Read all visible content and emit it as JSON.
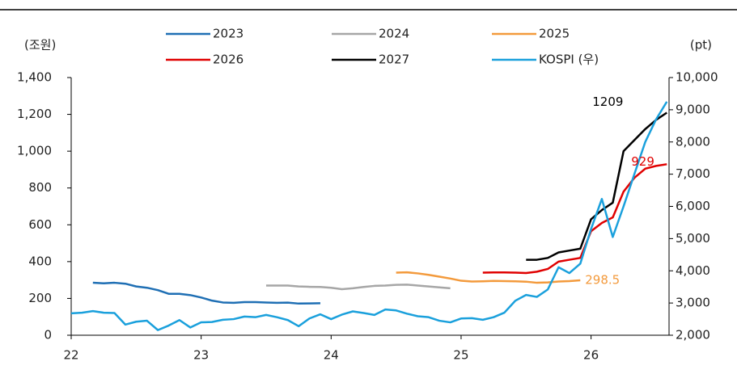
{
  "chart_data": {
    "type": "line",
    "y_unit_label": "(조원)",
    "y2_unit_label": "(pt)",
    "xlim": [
      22,
      26.6
    ],
    "xticks": [
      22,
      23,
      24,
      25,
      26
    ],
    "ylim": [
      0,
      1400
    ],
    "yticks": [
      0,
      200,
      400,
      600,
      800,
      {
        "value": 1000,
        "label": "1,000"
      },
      {
        "value": 1200,
        "label": "1,200"
      },
      {
        "value": 1400,
        "label": "1,400"
      }
    ],
    "y2lim": [
      2000,
      10000
    ],
    "y2ticks": [
      {
        "value": 2000,
        "label": "2,000"
      },
      {
        "value": 3000,
        "label": "3,000"
      },
      {
        "value": 4000,
        "label": "4,000"
      },
      {
        "value": 5000,
        "label": "5,000"
      },
      {
        "value": 6000,
        "label": "6,000"
      },
      {
        "value": 7000,
        "label": "7,000"
      },
      {
        "value": 8000,
        "label": "8,000"
      },
      {
        "value": 9000,
        "label": "9,000"
      },
      {
        "value": 10000,
        "label": "10,000"
      }
    ],
    "series": [
      {
        "name": "2023",
        "color": "#1f6fb4",
        "x": [
          22.167,
          22.25,
          22.333,
          22.417,
          22.5,
          22.583,
          22.667,
          22.75,
          22.833,
          22.917,
          23,
          23.083,
          23.167,
          23.25,
          23.333,
          23.417,
          23.5,
          23.583,
          23.667,
          23.75,
          23.833,
          23.917
        ],
        "values": [
          285,
          282,
          285,
          280,
          265,
          258,
          245,
          225,
          225,
          218,
          205,
          188,
          178,
          176,
          180,
          180,
          178,
          176,
          177,
          172,
          173,
          174
        ]
      },
      {
        "name": "2024",
        "color": "#a6a6a6",
        "x": [
          23.5,
          23.583,
          23.667,
          23.75,
          23.833,
          23.917,
          24,
          24.083,
          24.167,
          24.25,
          24.333,
          24.417,
          24.5,
          24.583,
          24.667,
          24.75,
          24.833,
          24.917
        ],
        "values": [
          270,
          270,
          270,
          265,
          263,
          262,
          258,
          250,
          255,
          262,
          268,
          270,
          274,
          275,
          270,
          265,
          260,
          255
        ]
      },
      {
        "name": "2025",
        "color": "#f39a3c",
        "x": [
          24.5,
          24.583,
          24.667,
          24.75,
          24.833,
          24.917,
          25,
          25.083,
          25.167,
          25.25,
          25.333,
          25.417,
          25.5,
          25.583,
          25.667,
          25.75,
          25.833,
          25.917
        ],
        "values": [
          340,
          342,
          336,
          328,
          318,
          308,
          296,
          292,
          293,
          295,
          294,
          293,
          291,
          285,
          287,
          292,
          294,
          298.5
        ]
      },
      {
        "name": "2026",
        "color": "#e00000",
        "x": [
          25.167,
          25.25,
          25.333,
          25.417,
          25.5,
          25.583,
          25.667,
          25.75,
          25.833,
          25.917,
          26,
          26.083,
          26.167,
          26.25,
          26.333,
          26.417,
          26.5,
          26.583
        ],
        "values": [
          340,
          341,
          341,
          340,
          338,
          345,
          360,
          400,
          410,
          420,
          565,
          610,
          640,
          780,
          855,
          905,
          920,
          929
        ]
      },
      {
        "name": "2027",
        "color": "#000000",
        "x": [
          25.5,
          25.583,
          25.667,
          25.75,
          25.833,
          25.917,
          26,
          26.083,
          26.167,
          26.25,
          26.333,
          26.417,
          26.5,
          26.583
        ],
        "values": [
          410,
          410,
          420,
          450,
          460,
          470,
          630,
          680,
          720,
          1000,
          1060,
          1120,
          1170,
          1209
        ]
      },
      {
        "name": "KOSPI (우)",
        "color": "#1aa0dc",
        "axis": "y2",
        "x": [
          22,
          22.083,
          22.167,
          22.25,
          22.333,
          22.417,
          22.5,
          22.583,
          22.667,
          22.75,
          22.833,
          22.917,
          23,
          23.083,
          23.167,
          23.25,
          23.333,
          23.417,
          23.5,
          23.583,
          23.667,
          23.75,
          23.833,
          23.917,
          24,
          24.083,
          24.167,
          24.25,
          24.333,
          24.417,
          24.5,
          24.583,
          24.667,
          24.75,
          24.833,
          24.917,
          25,
          25.083,
          25.167,
          25.25,
          25.333,
          25.417,
          25.5,
          25.583,
          25.667,
          25.75,
          25.833,
          25.917,
          26,
          26.083,
          26.167,
          26.25,
          26.333,
          26.417,
          26.5,
          26.583
        ],
        "values": [
          2680,
          2700,
          2750,
          2700,
          2690,
          2330,
          2420,
          2450,
          2160,
          2300,
          2470,
          2240,
          2400,
          2410,
          2480,
          2500,
          2580,
          2560,
          2630,
          2560,
          2470,
          2280,
          2520,
          2650,
          2500,
          2640,
          2740,
          2690,
          2630,
          2800,
          2770,
          2670,
          2590,
          2560,
          2450,
          2400,
          2520,
          2530,
          2480,
          2560,
          2700,
          3070,
          3250,
          3190,
          3420,
          4110,
          3930,
          4220,
          5300,
          6230,
          5050,
          6000,
          7000,
          8000,
          8700,
          9250
        ]
      }
    ],
    "annotations": [
      {
        "text": "1209",
        "color": "#000000",
        "x": 26.583,
        "y": 1209
      },
      {
        "text": "929",
        "color": "#e00000",
        "x": 26.583,
        "y": 929
      },
      {
        "text": "298.5",
        "color": "#f39a3c",
        "x": 25.917,
        "y": 298.5
      }
    ]
  }
}
